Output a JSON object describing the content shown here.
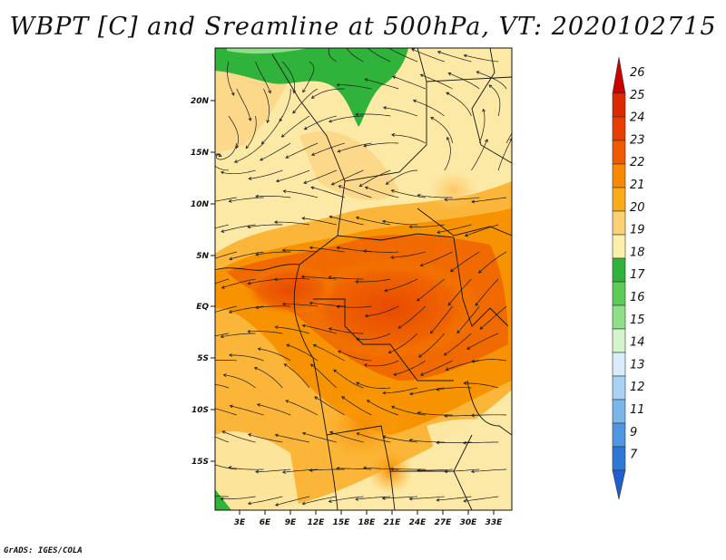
{
  "title": "WBPT [C] and Sreamline at 500hPa, VT: 2020102715",
  "credit": "GrADS: IGES/COLA",
  "map": {
    "lat_labels": [
      "20N",
      "15N",
      "10N",
      "5N",
      "EQ",
      "5S",
      "10S",
      "15S"
    ],
    "lon_labels": [
      "3E",
      "6E",
      "9E",
      "12E",
      "15E",
      "18E",
      "21E",
      "24E",
      "27E",
      "30E",
      "33E"
    ]
  },
  "colorbar": {
    "levels": [
      "26",
      "25",
      "24",
      "23",
      "22",
      "21",
      "20",
      "19",
      "18",
      "17",
      "16",
      "15",
      "14",
      "13",
      "12",
      "11",
      "9",
      "7"
    ],
    "colors": [
      "#c80000",
      "#dc2a00",
      "#e83c00",
      "#f05a00",
      "#f78a00",
      "#fbab1a",
      "#fcd074",
      "#fdf0a8",
      "#2fb33a",
      "#5ccb58",
      "#8fdf88",
      "#d2f5cc",
      "#d8ecfb",
      "#a9d2f5",
      "#7ab5ec",
      "#4f97e2",
      "#2d78d6",
      "#1f5fd0"
    ]
  }
}
